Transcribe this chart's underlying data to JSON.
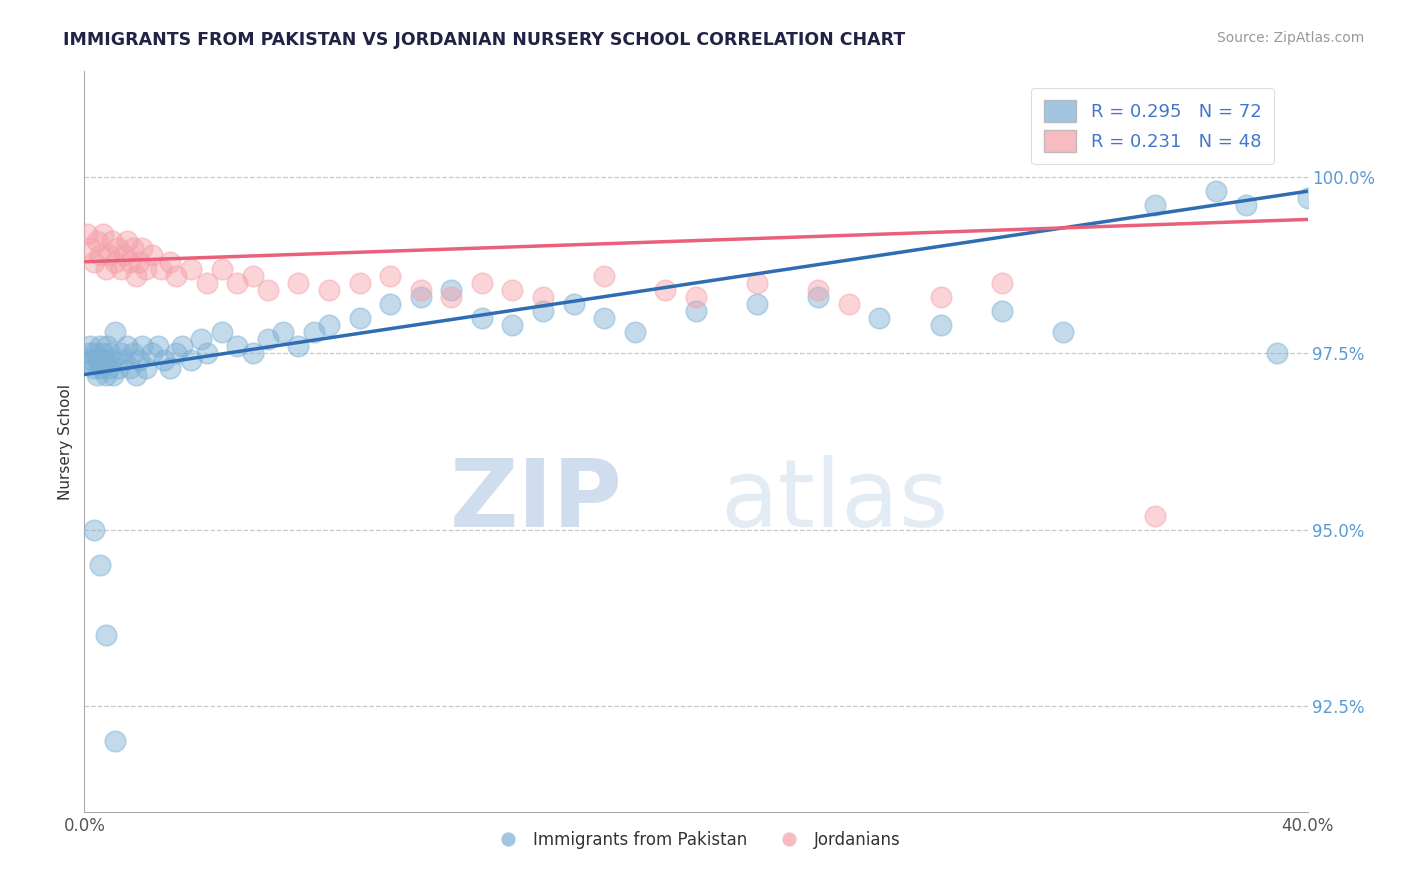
{
  "title": "IMMIGRANTS FROM PAKISTAN VS JORDANIAN NURSERY SCHOOL CORRELATION CHART",
  "source": "Source: ZipAtlas.com",
  "ylabel": "Nursery School",
  "yticks": [
    92.5,
    95.0,
    97.5,
    100.0
  ],
  "ytick_labels": [
    "92.5%",
    "95.0%",
    "97.5%",
    "100.0%"
  ],
  "xmin": 0.0,
  "xmax": 40.0,
  "ymin": 91.0,
  "ymax": 101.5,
  "legend1_label": "Immigrants from Pakistan",
  "legend2_label": "Jordanians",
  "R1": 0.295,
  "N1": 72,
  "R2": 0.231,
  "N2": 48,
  "blue_color": "#7BAFD4",
  "pink_color": "#F4A0A8",
  "blue_line_color": "#2E6DB4",
  "pink_line_color": "#E8607A",
  "watermark_zip": "ZIP",
  "watermark_atlas": "atlas",
  "blue_scatter_x": [
    0.1,
    0.15,
    0.2,
    0.25,
    0.3,
    0.35,
    0.4,
    0.45,
    0.5,
    0.55,
    0.6,
    0.65,
    0.7,
    0.75,
    0.8,
    0.85,
    0.9,
    0.95,
    1.0,
    1.1,
    1.2,
    1.3,
    1.4,
    1.5,
    1.6,
    1.7,
    1.8,
    1.9,
    2.0,
    2.2,
    2.4,
    2.6,
    2.8,
    3.0,
    3.2,
    3.5,
    3.8,
    4.0,
    4.5,
    5.0,
    5.5,
    6.0,
    6.5,
    7.0,
    7.5,
    8.0,
    9.0,
    10.0,
    11.0,
    12.0,
    13.0,
    14.0,
    15.0,
    16.0,
    17.0,
    18.0,
    20.0,
    22.0,
    24.0,
    26.0,
    28.0,
    30.0,
    32.0,
    35.0,
    37.0,
    38.0,
    39.0,
    40.0,
    0.3,
    0.5,
    0.7,
    1.0
  ],
  "blue_scatter_y": [
    97.4,
    97.5,
    97.6,
    97.4,
    97.3,
    97.5,
    97.2,
    97.4,
    97.6,
    97.3,
    97.5,
    97.4,
    97.2,
    97.6,
    97.3,
    97.5,
    97.4,
    97.2,
    97.8,
    97.3,
    97.5,
    97.4,
    97.6,
    97.3,
    97.5,
    97.2,
    97.4,
    97.6,
    97.3,
    97.5,
    97.6,
    97.4,
    97.3,
    97.5,
    97.6,
    97.4,
    97.7,
    97.5,
    97.8,
    97.6,
    97.5,
    97.7,
    97.8,
    97.6,
    97.8,
    97.9,
    98.0,
    98.2,
    98.3,
    98.4,
    98.0,
    97.9,
    98.1,
    98.2,
    98.0,
    97.8,
    98.1,
    98.2,
    98.3,
    98.0,
    97.9,
    98.1,
    97.8,
    99.6,
    99.8,
    99.6,
    97.5,
    99.7,
    95.0,
    94.5,
    93.5,
    92.0
  ],
  "pink_scatter_x": [
    0.1,
    0.2,
    0.3,
    0.4,
    0.5,
    0.6,
    0.7,
    0.8,
    0.9,
    1.0,
    1.1,
    1.2,
    1.3,
    1.4,
    1.5,
    1.6,
    1.7,
    1.8,
    1.9,
    2.0,
    2.2,
    2.5,
    2.8,
    3.0,
    3.5,
    4.0,
    4.5,
    5.0,
    5.5,
    6.0,
    7.0,
    8.0,
    9.0,
    10.0,
    11.0,
    12.0,
    13.0,
    14.0,
    15.0,
    17.0,
    19.0,
    20.0,
    22.0,
    24.0,
    25.0,
    28.0,
    30.0,
    35.0
  ],
  "pink_scatter_y": [
    99.2,
    99.0,
    98.8,
    99.1,
    98.9,
    99.2,
    98.7,
    98.9,
    99.1,
    98.8,
    99.0,
    98.7,
    98.9,
    99.1,
    98.8,
    99.0,
    98.6,
    98.8,
    99.0,
    98.7,
    98.9,
    98.7,
    98.8,
    98.6,
    98.7,
    98.5,
    98.7,
    98.5,
    98.6,
    98.4,
    98.5,
    98.4,
    98.5,
    98.6,
    98.4,
    98.3,
    98.5,
    98.4,
    98.3,
    98.6,
    98.4,
    98.3,
    98.5,
    98.4,
    98.2,
    98.3,
    98.5,
    95.2
  ]
}
